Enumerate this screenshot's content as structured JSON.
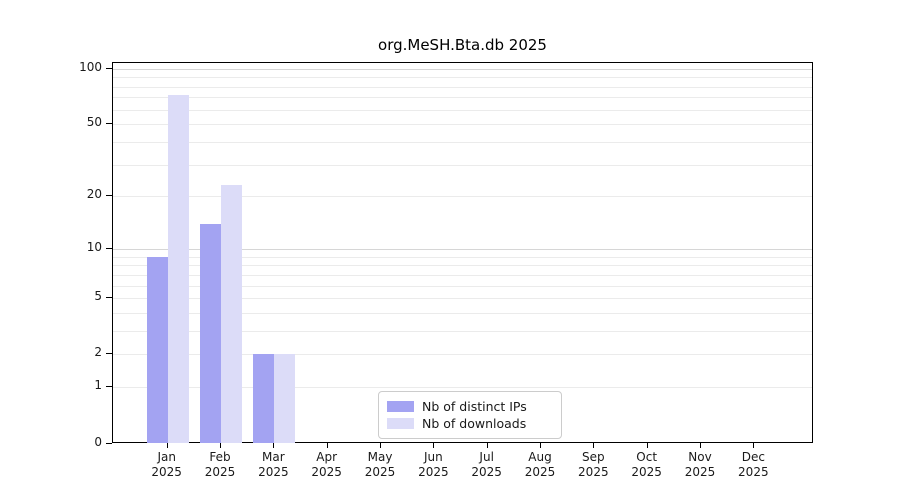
{
  "chart_data": {
    "type": "bar",
    "title": "org.MeSH.Bta.db 2025",
    "year": "2025",
    "months": [
      "Jan",
      "Feb",
      "Mar",
      "Apr",
      "May",
      "Jun",
      "Jul",
      "Aug",
      "Sep",
      "Oct",
      "Nov",
      "Dec"
    ],
    "categories": [
      "Jan 2025",
      "Feb 2025",
      "Mar 2025",
      "Apr 2025",
      "May 2025",
      "Jun 2025",
      "Jul 2025",
      "Aug 2025",
      "Sep 2025",
      "Oct 2025",
      "Nov 2025",
      "Dec 2025"
    ],
    "series": [
      {
        "name": "Nb of distinct IPs",
        "color": "#a3a3f2",
        "values": [
          9,
          14,
          2,
          0,
          0,
          0,
          0,
          0,
          0,
          0,
          0,
          0
        ]
      },
      {
        "name": "Nb of downloads",
        "color": "#dcdcf8",
        "values": [
          72,
          23,
          2,
          0,
          0,
          0,
          0,
          0,
          0,
          0,
          0,
          0
        ]
      }
    ],
    "yscale": "log1p",
    "yticks": [
      0,
      1,
      2,
      5,
      10,
      20,
      50,
      100
    ],
    "ylim": [
      0,
      110
    ],
    "gridline_values": [
      1,
      2,
      3,
      4,
      5,
      6,
      7,
      8,
      9,
      10,
      20,
      30,
      40,
      50,
      60,
      70,
      80,
      90,
      100
    ],
    "major_gridline_values": [
      10,
      100
    ],
    "grid": "horizontal",
    "legend_position": "lower-center-inside",
    "colors": {
      "distinct_ips": "#a3a3f2",
      "downloads": "#dcdcf8",
      "gridline": "#ebebeb",
      "gridline_major": "#d6d6d6",
      "axis": "#000000",
      "background": "#ffffff"
    }
  }
}
